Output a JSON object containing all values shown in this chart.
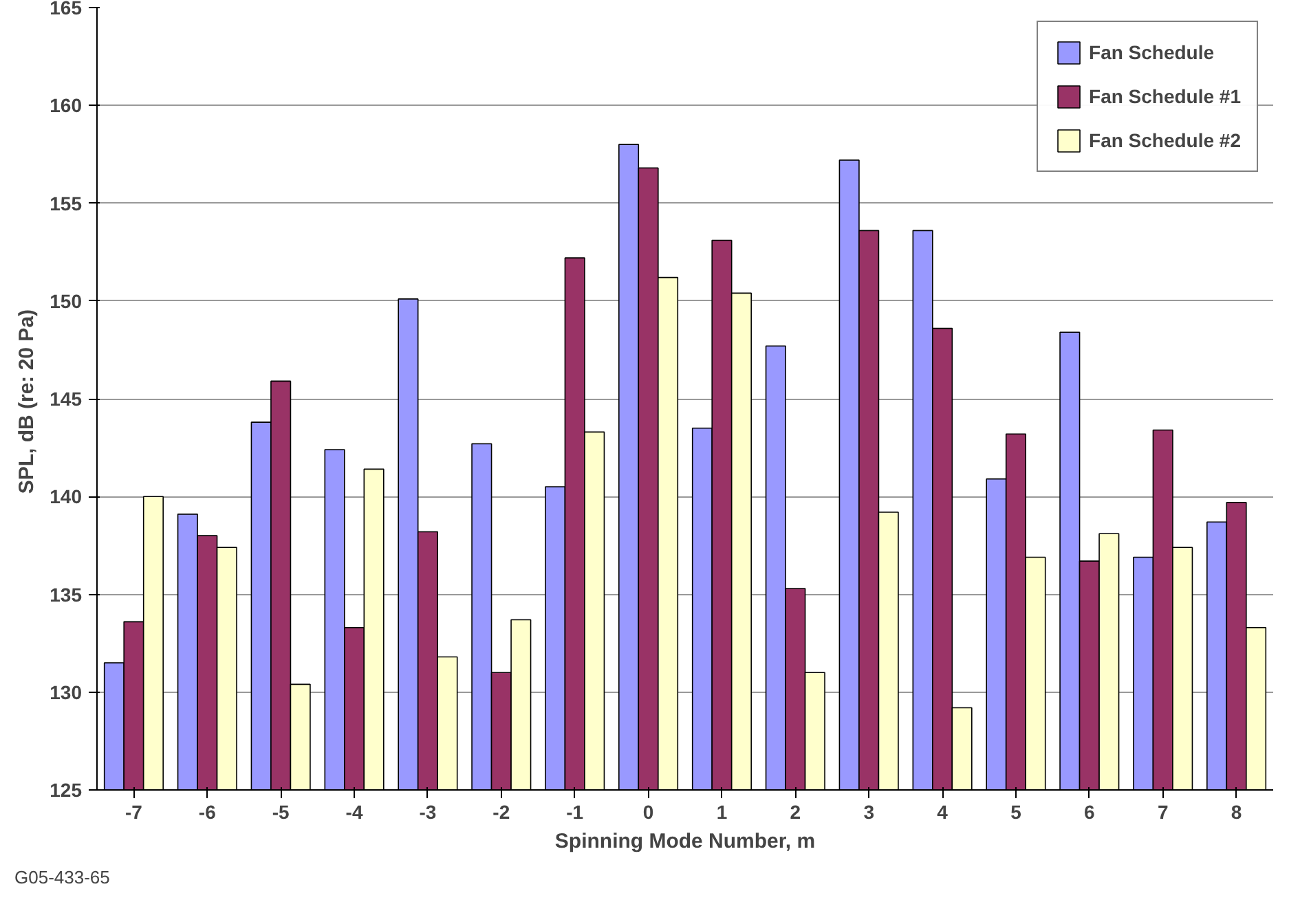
{
  "chart_data": {
    "type": "bar",
    "xlabel": "Spinning Mode Number, m",
    "ylabel": "SPL, dB (re: 20  Pa)",
    "categories": [
      "-7",
      "-6",
      "-5",
      "-4",
      "-3",
      "-2",
      "-1",
      "0",
      "1",
      "2",
      "3",
      "4",
      "5",
      "6",
      "7",
      "8"
    ],
    "series": [
      {
        "name": "Fan Schedule",
        "color": "#9999ff",
        "values": [
          131.5,
          139.1,
          143.8,
          142.4,
          150.1,
          142.7,
          140.5,
          158.0,
          143.5,
          147.7,
          157.2,
          153.6,
          140.9,
          148.4,
          136.9,
          138.7
        ]
      },
      {
        "name": "Fan Schedule #1",
        "color": "#993366",
        "values": [
          133.6,
          138.0,
          145.9,
          133.3,
          138.2,
          131.0,
          152.2,
          156.8,
          153.1,
          135.3,
          153.6,
          148.6,
          143.2,
          136.7,
          143.4,
          139.7
        ]
      },
      {
        "name": "Fan Schedule #2",
        "color": "#ffffcc",
        "values": [
          140.0,
          137.4,
          130.4,
          141.4,
          131.8,
          133.7,
          143.3,
          151.2,
          150.4,
          131.0,
          139.2,
          129.2,
          136.9,
          138.1,
          137.4,
          133.3
        ]
      }
    ],
    "ylim": [
      125,
      165
    ],
    "yticks": [
      125,
      130,
      135,
      140,
      145,
      150,
      155,
      160,
      165
    ],
    "grid": "y",
    "legend": "top right",
    "annotations": [
      "G05-433-65"
    ]
  }
}
